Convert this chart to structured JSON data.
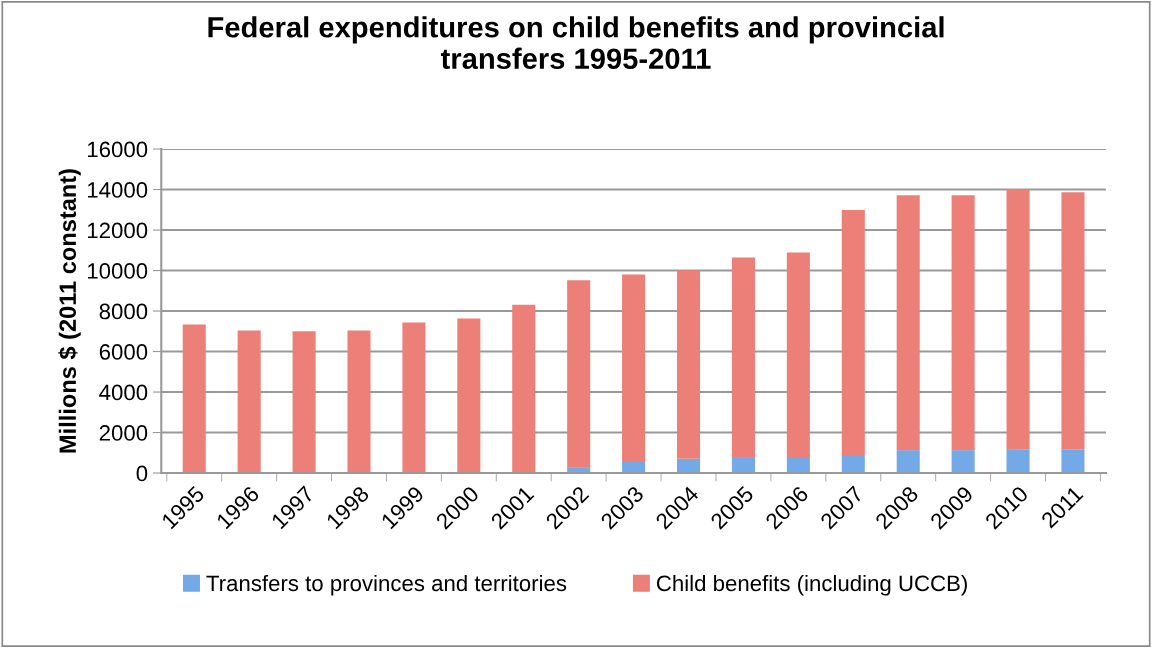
{
  "chart_data": {
    "type": "bar",
    "title": "Federal expenditures on child benefits and provincial\ntransfers 1995-2011",
    "ylabel": "Millions $ (2011 constant)",
    "categories": [
      "1995",
      "1996",
      "1997",
      "1998",
      "1999",
      "2000",
      "2001",
      "2002",
      "2003",
      "2004",
      "2005",
      "2006",
      "2007",
      "2008",
      "2009",
      "2010",
      "2011"
    ],
    "stacked": true,
    "series": [
      {
        "name": "Transfers to provinces and territories",
        "color": "#72a9e6",
        "values": [
          0,
          0,
          0,
          0,
          0,
          0,
          0,
          290,
          550,
          700,
          790,
          745,
          890,
          1130,
          1130,
          1180,
          1180
        ]
      },
      {
        "name": "Child benefits (including UCCB)",
        "color": "#ec7f78",
        "values": [
          7340,
          7040,
          7000,
          7040,
          7430,
          7630,
          8310,
          9230,
          9260,
          9320,
          9850,
          10150,
          12100,
          12590,
          12590,
          12830,
          12680
        ]
      }
    ],
    "ylim": [
      0,
      16000
    ],
    "yticks": [
      0,
      2000,
      4000,
      6000,
      8000,
      10000,
      12000,
      14000,
      16000
    ],
    "grid": "y",
    "legend": "bottom"
  }
}
